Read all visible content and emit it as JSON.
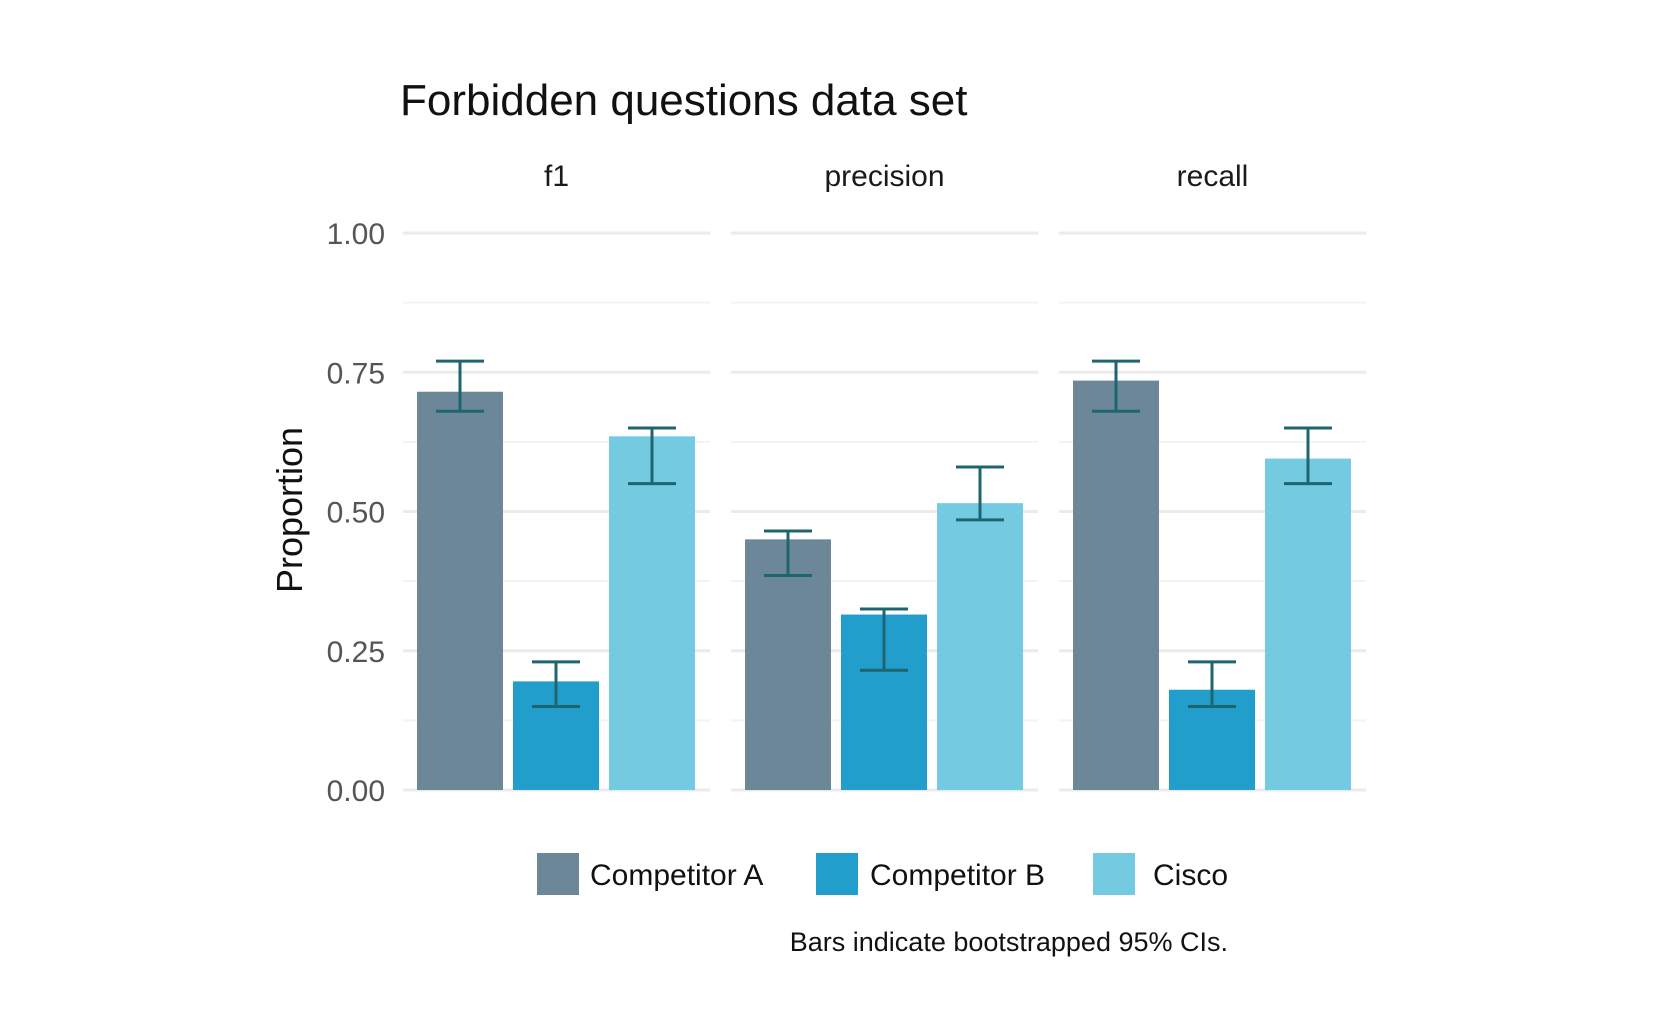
{
  "chart_data": {
    "type": "bar",
    "title": "Forbidden questions data set",
    "ylabel": "Proportion",
    "xlabel": "",
    "ylim": [
      0,
      1
    ],
    "yticks": [
      "0.00",
      "0.25",
      "0.50",
      "0.75",
      "1.00"
    ],
    "grid": true,
    "legend_position": "bottom",
    "caption": "Bars indicate bootstrapped 95% CIs.",
    "facets": [
      "f1",
      "precision",
      "recall"
    ],
    "series": [
      {
        "name": "Competitor A",
        "color": "#6b8798",
        "values": [
          0.715,
          0.45,
          0.735
        ],
        "ci_low": [
          0.68,
          0.385,
          0.68
        ],
        "ci_high": [
          0.77,
          0.465,
          0.77
        ]
      },
      {
        "name": "Competitor B",
        "color": "#219ecb",
        "values": [
          0.195,
          0.315,
          0.18
        ],
        "ci_low": [
          0.15,
          0.215,
          0.15
        ],
        "ci_high": [
          0.23,
          0.325,
          0.23
        ]
      },
      {
        "name": "Cisco",
        "color": "#74cae0",
        "values": [
          0.635,
          0.515,
          0.595
        ],
        "ci_low": [
          0.55,
          0.485,
          0.55
        ],
        "ci_high": [
          0.65,
          0.58,
          0.65
        ]
      }
    ],
    "errorbar_color": "#1d6670"
  }
}
